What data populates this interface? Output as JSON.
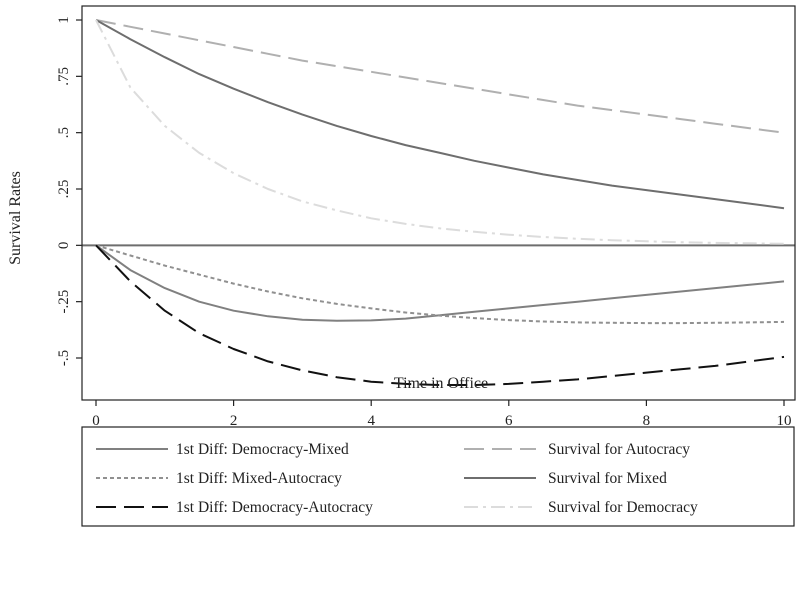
{
  "chart_data": {
    "type": "line",
    "title": "",
    "xlabel": "Time in Office",
    "ylabel": "Survival Rates",
    "xlim": [
      -0.2,
      10.15
    ],
    "ylim": [
      -0.7,
      1.05
    ],
    "grid": false,
    "legend_position": "bottom",
    "x_ticks": [
      0,
      2,
      4,
      6,
      8,
      10
    ],
    "x_tick_labels": [
      "0",
      "2",
      "4",
      "6",
      "8",
      "10"
    ],
    "y_ticks": [
      1,
      0.75,
      0.5,
      0.25,
      0,
      -0.25,
      -0.5
    ],
    "y_tick_labels": [
      "1",
      ".75",
      ".5",
      ".25",
      "0",
      "-.25",
      "-.5"
    ],
    "reference_line_y": 0,
    "x": [
      0,
      0.5,
      1,
      1.5,
      2,
      2.5,
      3,
      3.5,
      4,
      4.5,
      5,
      5.5,
      6,
      6.5,
      7,
      7.5,
      8,
      8.5,
      9,
      9.5,
      10
    ],
    "series": [
      {
        "name": "1st Diff: Democracy-Mixed",
        "color": "#808080",
        "dash": "solid",
        "values": [
          0,
          -0.11,
          -0.19,
          -0.25,
          -0.29,
          -0.315,
          -0.33,
          -0.335,
          -0.333,
          -0.325,
          -0.31,
          -0.295,
          -0.28,
          -0.265,
          -0.25,
          -0.235,
          -0.22,
          -0.205,
          -0.19,
          -0.175,
          -0.16
        ]
      },
      {
        "name": "1st Diff: Mixed-Autocracy",
        "color": "#909090",
        "dash": "short",
        "values": [
          0,
          -0.045,
          -0.09,
          -0.13,
          -0.17,
          -0.205,
          -0.235,
          -0.26,
          -0.28,
          -0.298,
          -0.312,
          -0.323,
          -0.332,
          -0.338,
          -0.342,
          -0.344,
          -0.345,
          -0.345,
          -0.344,
          -0.342,
          -0.34
        ]
      },
      {
        "name": "1st Diff: Democracy-Autocracy",
        "color": "#111111",
        "dash": "long",
        "values": [
          0,
          -0.16,
          -0.29,
          -0.39,
          -0.46,
          -0.515,
          -0.555,
          -0.585,
          -0.605,
          -0.615,
          -0.62,
          -0.62,
          -0.615,
          -0.605,
          -0.595,
          -0.58,
          -0.565,
          -0.55,
          -0.535,
          -0.515,
          -0.495
        ]
      },
      {
        "name": "Survival for Autocracy",
        "color": "#b0b0b0",
        "dash": "long",
        "values": [
          1,
          0.97,
          0.94,
          0.91,
          0.88,
          0.85,
          0.82,
          0.795,
          0.77,
          0.745,
          0.72,
          0.695,
          0.67,
          0.645,
          0.62,
          0.6,
          0.58,
          0.56,
          0.54,
          0.52,
          0.5
        ]
      },
      {
        "name": "Survival for Mixed",
        "color": "#6e6e6e",
        "dash": "solid",
        "values": [
          1,
          0.915,
          0.835,
          0.76,
          0.695,
          0.635,
          0.58,
          0.53,
          0.485,
          0.445,
          0.41,
          0.375,
          0.345,
          0.315,
          0.29,
          0.265,
          0.245,
          0.225,
          0.205,
          0.185,
          0.165
        ]
      },
      {
        "name": "Survival for Democracy",
        "color": "#dcdcdc",
        "dash": "dashdot",
        "values": [
          1,
          0.7,
          0.53,
          0.41,
          0.32,
          0.25,
          0.195,
          0.155,
          0.12,
          0.095,
          0.075,
          0.06,
          0.047,
          0.037,
          0.029,
          0.023,
          0.018,
          0.014,
          0.011,
          0.009,
          0.007
        ]
      }
    ]
  }
}
